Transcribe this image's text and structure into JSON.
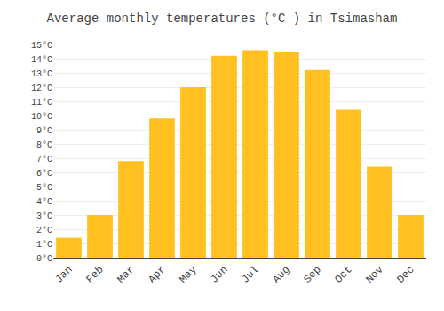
{
  "chart_data": {
    "type": "bar",
    "title": "Average monthly temperatures (°C ) in Tsimasham",
    "categories": [
      "Jan",
      "Feb",
      "Mar",
      "Apr",
      "May",
      "Jun",
      "Jul",
      "Aug",
      "Sep",
      "Oct",
      "Nov",
      "Dec"
    ],
    "values": [
      1.4,
      3.0,
      6.8,
      9.8,
      12.0,
      14.2,
      14.6,
      14.5,
      13.2,
      10.4,
      6.4,
      3.0
    ],
    "color": "#FFC020",
    "ylim": [
      0,
      15
    ],
    "yticks": [
      {
        "value": 0,
        "label": "0°C"
      },
      {
        "value": 1,
        "label": "1°C"
      },
      {
        "value": 2,
        "label": "2°C"
      },
      {
        "value": 3,
        "label": "3°C"
      },
      {
        "value": 4,
        "label": "4°C"
      },
      {
        "value": 5,
        "label": "5°C"
      },
      {
        "value": 6,
        "label": "6°C"
      },
      {
        "value": 7,
        "label": "7°C"
      },
      {
        "value": 8,
        "label": "8°C"
      },
      {
        "value": 9,
        "label": "9°C"
      },
      {
        "value": 10,
        "label": "10°C"
      },
      {
        "value": 11,
        "label": "11°C"
      },
      {
        "value": 12,
        "label": "12°C"
      },
      {
        "value": 13,
        "label": "13°C"
      },
      {
        "value": 14,
        "label": "14°C"
      },
      {
        "value": 15,
        "label": "15°C"
      }
    ],
    "grid": true
  }
}
